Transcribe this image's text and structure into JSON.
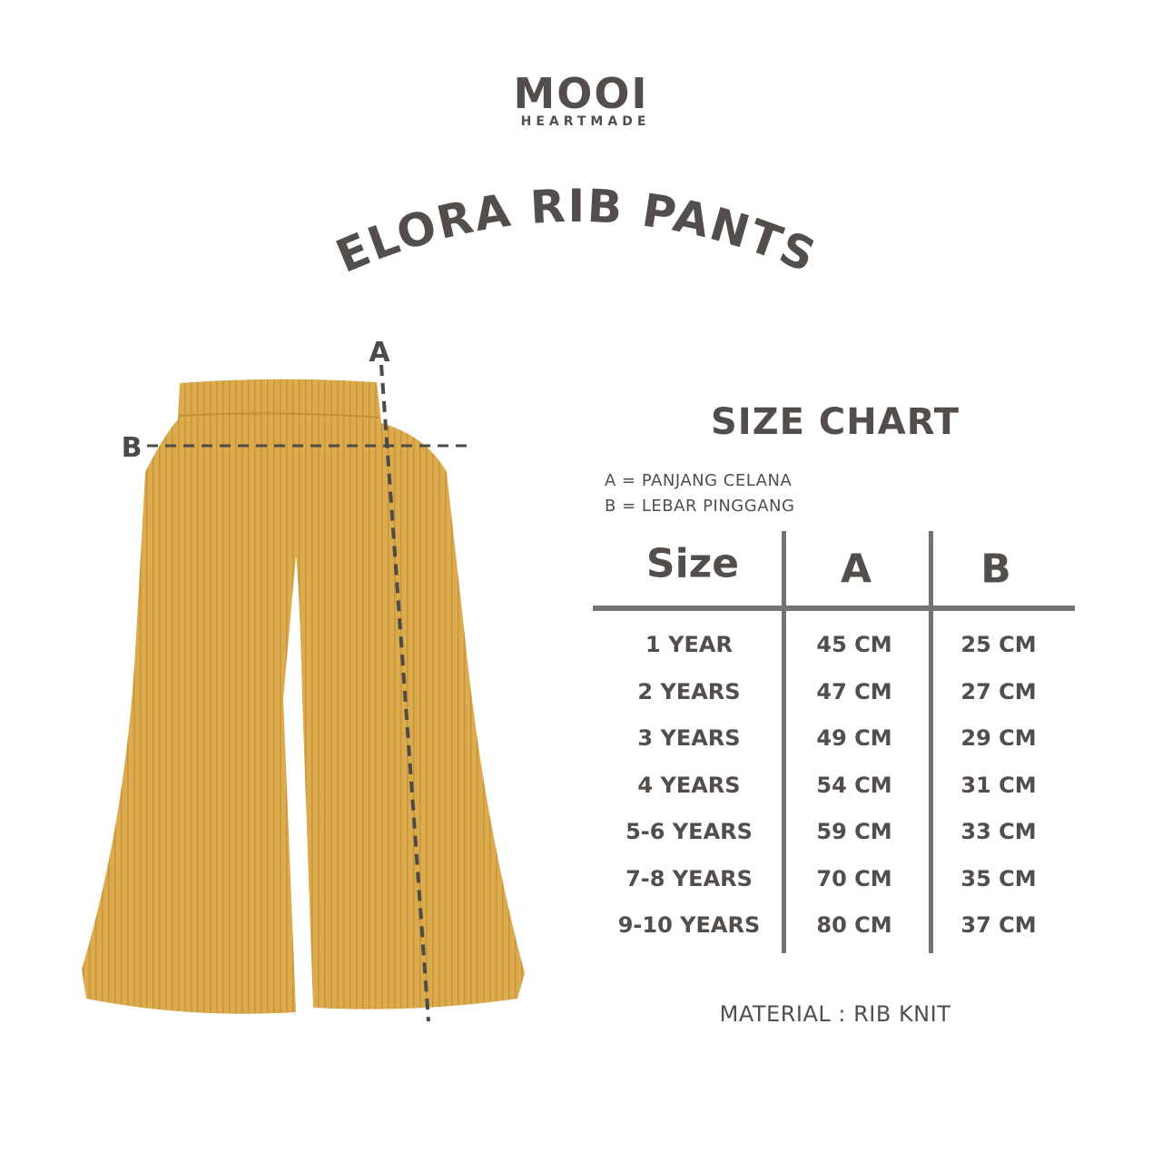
{
  "brand": {
    "name": "MOOI",
    "tagline": "HEARTMADE"
  },
  "product_title": "ELORA RIB PANTS",
  "diagram": {
    "label_a": "A",
    "label_b": "B",
    "garment_color": "#d9a84a",
    "dash_color": "#4d4a48"
  },
  "size_chart": {
    "title": "SIZE CHART",
    "legend": [
      "A = PANJANG CELANA",
      "B = LEBAR PINGGANG"
    ],
    "headers": [
      "Size",
      "A",
      "B"
    ],
    "rows": [
      [
        "1 YEAR",
        "45 CM",
        "25 CM"
      ],
      [
        "2 YEARS",
        "47 CM",
        "27 CM"
      ],
      [
        "3 YEARS",
        "49 CM",
        "29 CM"
      ],
      [
        "4 YEARS",
        "54 CM",
        "31 CM"
      ],
      [
        "5-6 YEARS",
        "59 CM",
        "33 CM"
      ],
      [
        "7-8 YEARS",
        "70 CM",
        "35 CM"
      ],
      [
        "9-10 YEARS",
        "80 CM",
        "37 CM"
      ]
    ],
    "material": "MATERIAL : RIB KNIT"
  },
  "colors": {
    "text": "#534e4b",
    "rule": "#767272",
    "background": "#ffffff"
  }
}
